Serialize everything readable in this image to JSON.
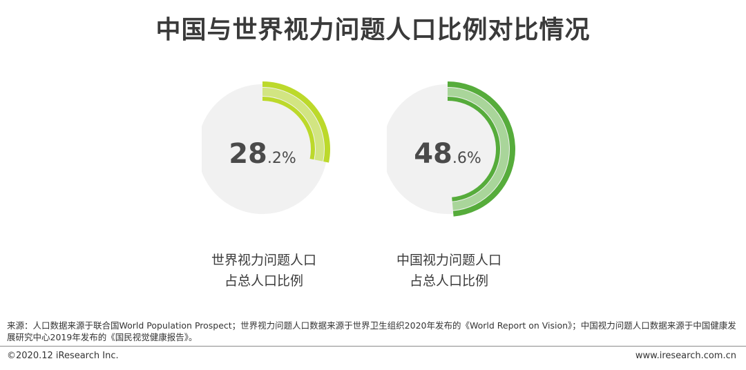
{
  "title": "中国与世界视力问题人口比例对比情况",
  "chart_data": [
    {
      "type": "pie",
      "value": 28.2,
      "value_int": "28",
      "value_dec": ".2%",
      "label_line1": "世界视力问题人口",
      "label_line2": "占总人口比例",
      "color_outer": "#bcd92b",
      "color_inner": "#d2e582"
    },
    {
      "type": "pie",
      "value": 48.6,
      "value_int": "48",
      "value_dec": ".6%",
      "label_line1": "中国视力问题人口",
      "label_line2": "占总人口比例",
      "color_outer": "#56ac3b",
      "color_inner": "#a9d59a"
    }
  ],
  "track_color": "#f1f1f1",
  "footer": {
    "source": "来源：人口数据来源于联合国World Population Prospect；世界视力问题人口数据来源于世界卫生组织2020年发布的《World Report on Vision》；中国视力问题人口数据来源于中国健康发展研究中心2019年发布的《国民视觉健康报告》。",
    "copyright": "©2020.12 iResearch Inc.",
    "website": "www.iresearch.com.cn"
  }
}
